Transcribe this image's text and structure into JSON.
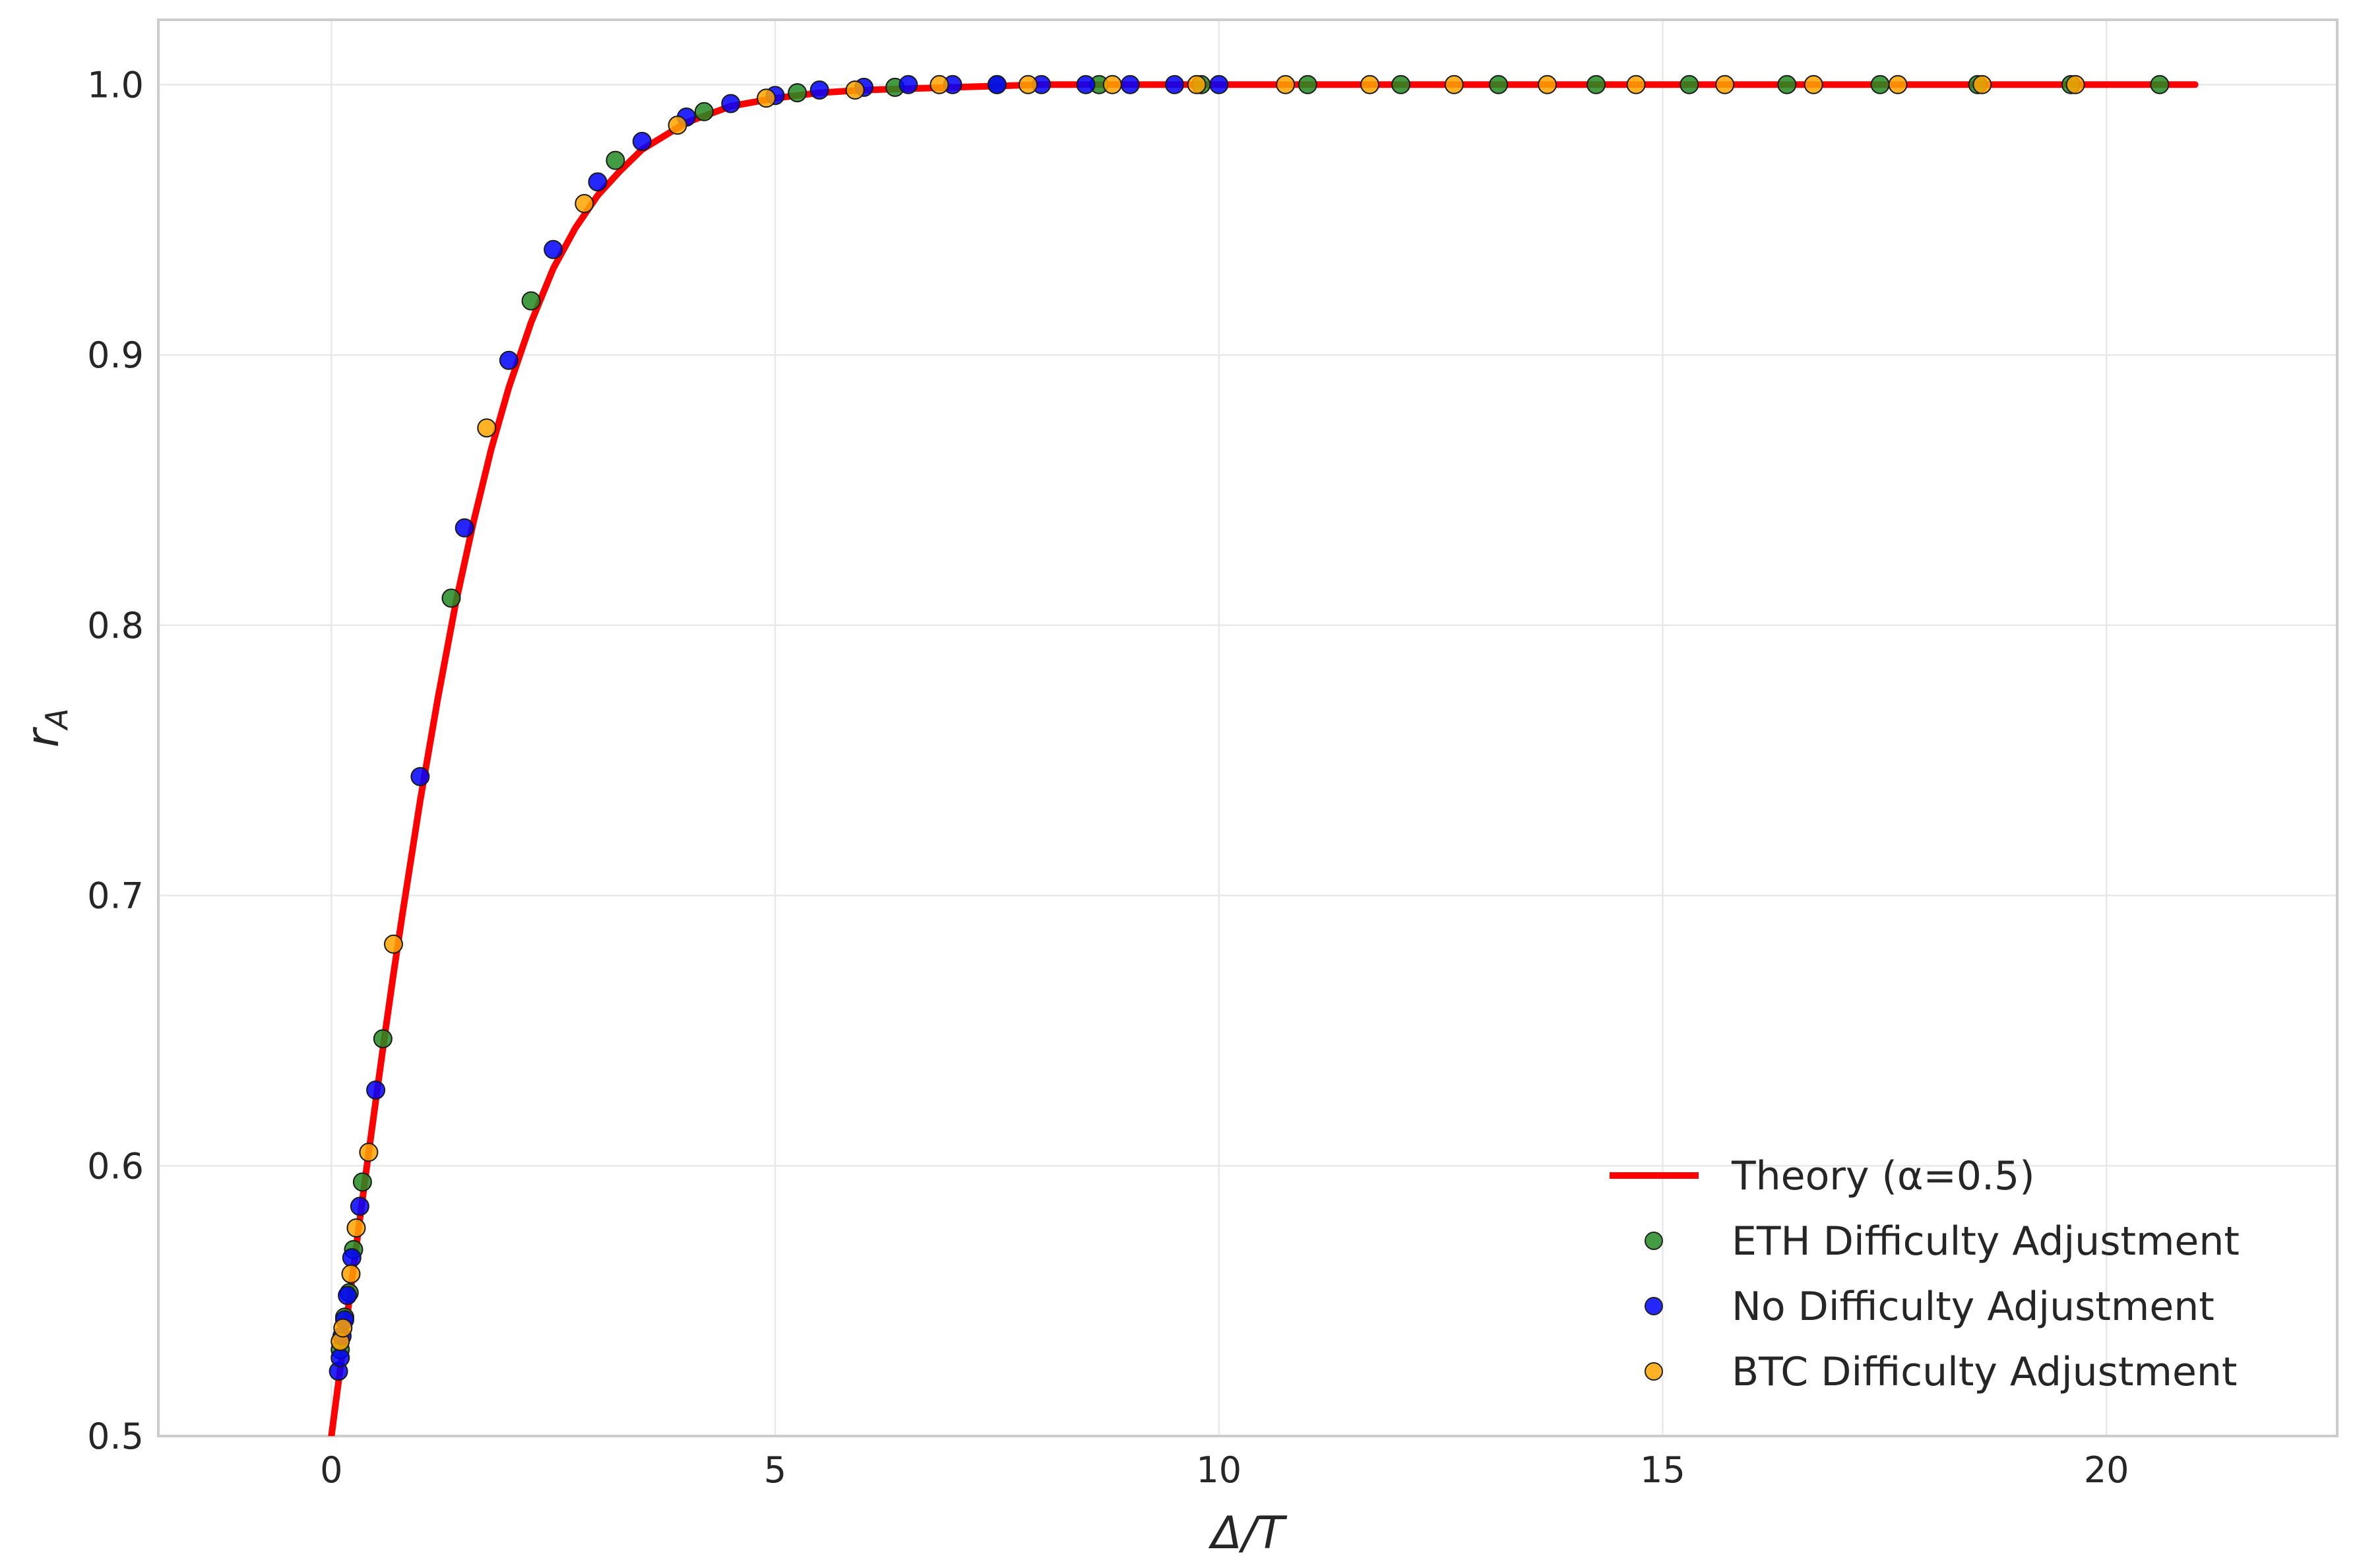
{
  "chart_data": {
    "type": "scatter",
    "title": "",
    "xlabel": "Δ/T",
    "ylabel": "r_A",
    "ylabel_main": "r",
    "ylabel_sub": "A",
    "xlim": [
      -1.95,
      22.6
    ],
    "ylim": [
      0.5,
      1.024
    ],
    "x_ticks": [
      0,
      5,
      10,
      15,
      20
    ],
    "y_ticks": [
      0.5,
      0.6,
      0.7,
      0.8,
      0.9,
      1.0
    ],
    "x_tick_labels": [
      "0",
      "5",
      "10",
      "15",
      "20"
    ],
    "y_tick_labels": [
      "0.5",
      "0.6",
      "0.7",
      "0.8",
      "0.9",
      "1.0"
    ],
    "grid": true,
    "legend_position": "bottom-right",
    "theory": {
      "name": "Theory (α=0.5)",
      "type": "line",
      "color": "#ff0000",
      "x": [
        0,
        0.1,
        0.2,
        0.3,
        0.4,
        0.5,
        0.6,
        0.7,
        0.8,
        1.0,
        1.2,
        1.4,
        1.6,
        1.8,
        2.0,
        2.25,
        2.5,
        2.75,
        3.0,
        3.25,
        3.5,
        3.75,
        4.0,
        4.5,
        5.0,
        5.5,
        6.0,
        7.0,
        8.0,
        10.0,
        15.0,
        21.0
      ],
      "y": [
        0.5,
        0.525,
        0.55,
        0.575,
        0.6,
        0.624,
        0.648,
        0.671,
        0.693,
        0.735,
        0.773,
        0.808,
        0.838,
        0.865,
        0.888,
        0.912,
        0.932,
        0.947,
        0.959,
        0.968,
        0.976,
        0.981,
        0.986,
        0.992,
        0.995,
        0.997,
        0.998,
        0.999,
        1.0,
        1.0,
        1.0,
        1.0
      ]
    },
    "series": [
      {
        "name": "ETH Difficulty Adjustment",
        "color": "#228b22",
        "points": [
          [
            0.1,
            0.532
          ],
          [
            0.15,
            0.544
          ],
          [
            0.2,
            0.553
          ],
          [
            0.25,
            0.569
          ],
          [
            0.35,
            0.594
          ],
          [
            0.58,
            0.647
          ],
          [
            1.35,
            0.81
          ],
          [
            2.25,
            0.92
          ],
          [
            3.2,
            0.972
          ],
          [
            4.2,
            0.99
          ],
          [
            5.25,
            0.997
          ],
          [
            6.35,
            0.999
          ],
          [
            7.5,
            1.0
          ],
          [
            8.65,
            1.0
          ],
          [
            9.8,
            1.0
          ],
          [
            11.0,
            1.0
          ],
          [
            12.05,
            1.0
          ],
          [
            13.15,
            1.0
          ],
          [
            14.25,
            1.0
          ],
          [
            15.3,
            1.0
          ],
          [
            16.4,
            1.0
          ],
          [
            17.45,
            1.0
          ],
          [
            18.55,
            1.0
          ],
          [
            19.6,
            1.0
          ],
          [
            20.6,
            1.0
          ]
        ]
      },
      {
        "name": "No Difficulty Adjustment",
        "color": "#0000ff",
        "points": [
          [
            0.08,
            0.524
          ],
          [
            0.1,
            0.529
          ],
          [
            0.12,
            0.537
          ],
          [
            0.15,
            0.543
          ],
          [
            0.18,
            0.552
          ],
          [
            0.23,
            0.566
          ],
          [
            0.32,
            0.585
          ],
          [
            0.5,
            0.628
          ],
          [
            1.0,
            0.744
          ],
          [
            1.5,
            0.836
          ],
          [
            2.0,
            0.898
          ],
          [
            2.5,
            0.939
          ],
          [
            3.0,
            0.964
          ],
          [
            3.5,
            0.979
          ],
          [
            4.0,
            0.988
          ],
          [
            4.5,
            0.993
          ],
          [
            5.0,
            0.996
          ],
          [
            5.5,
            0.998
          ],
          [
            6.0,
            0.999
          ],
          [
            6.5,
            1.0
          ],
          [
            7.0,
            1.0
          ],
          [
            7.5,
            1.0
          ],
          [
            8.0,
            1.0
          ],
          [
            8.5,
            1.0
          ],
          [
            9.0,
            1.0
          ],
          [
            9.5,
            1.0
          ],
          [
            10.0,
            1.0
          ]
        ]
      },
      {
        "name": "BTC Difficulty Adjustment",
        "color": "#ffa500",
        "points": [
          [
            0.1,
            0.535
          ],
          [
            0.13,
            0.54
          ],
          [
            0.22,
            0.56
          ],
          [
            0.28,
            0.577
          ],
          [
            0.42,
            0.605
          ],
          [
            0.7,
            0.682
          ],
          [
            1.75,
            0.873
          ],
          [
            2.85,
            0.956
          ],
          [
            3.9,
            0.985
          ],
          [
            4.9,
            0.995
          ],
          [
            5.9,
            0.998
          ],
          [
            6.85,
            1.0
          ],
          [
            7.85,
            1.0
          ],
          [
            8.8,
            1.0
          ],
          [
            9.75,
            1.0
          ],
          [
            10.75,
            1.0
          ],
          [
            11.7,
            1.0
          ],
          [
            12.65,
            1.0
          ],
          [
            13.7,
            1.0
          ],
          [
            14.7,
            1.0
          ],
          [
            15.7,
            1.0
          ],
          [
            16.7,
            1.0
          ],
          [
            17.65,
            1.0
          ],
          [
            18.6,
            1.0
          ],
          [
            19.65,
            1.0
          ]
        ]
      }
    ]
  }
}
